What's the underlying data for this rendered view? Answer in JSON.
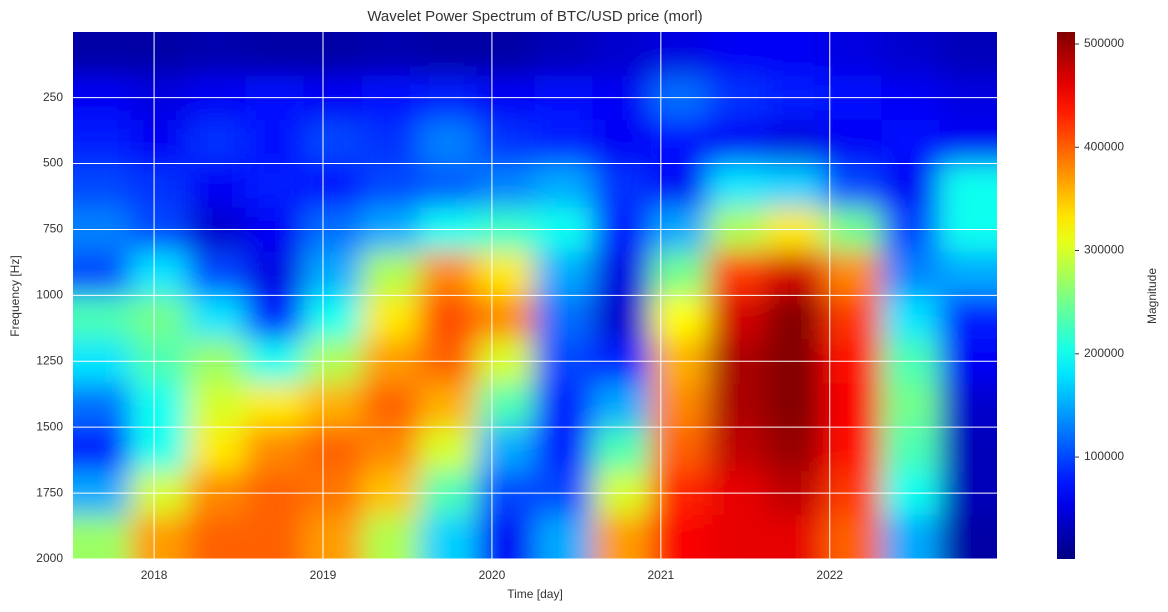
{
  "chart_data": {
    "type": "heatmap",
    "title": "Wavelet Power Spectrum of BTC/USD price (morl)",
    "xlabel": "Time [day]",
    "ylabel": "Frequency [Hz]",
    "colorbar_label": "Magnitude",
    "colormap": "jet",
    "grid": true,
    "y_reversed": true,
    "xlim": [
      2017.52,
      2022.99
    ],
    "xticks": [
      2018,
      2019,
      2020,
      2021,
      2022
    ],
    "ylim": [
      1,
      2000
    ],
    "yticks": [
      250,
      500,
      750,
      1000,
      1250,
      1500,
      1750,
      2000
    ],
    "clim": [
      1300,
      511600
    ],
    "cticks": [
      100000,
      200000,
      300000,
      400000,
      500000
    ],
    "x": [
      2017.69,
      2018.03,
      2018.37,
      2018.71,
      2019.06,
      2019.4,
      2019.74,
      2020.08,
      2020.42,
      2020.77,
      2021.11,
      2021.45,
      2021.79,
      2022.13,
      2022.48,
      2022.82
    ],
    "y": [
      83,
      250,
      417,
      583,
      750,
      917,
      1083,
      1250,
      1417,
      1583,
      1750,
      1917
    ],
    "values": [
      [
        20000,
        20000,
        25000,
        20000,
        20000,
        25000,
        20000,
        20000,
        30000,
        40000,
        50000,
        60000,
        60000,
        50000,
        40000,
        30000
      ],
      [
        60000,
        50000,
        60000,
        70000,
        60000,
        70000,
        80000,
        60000,
        70000,
        60000,
        120000,
        90000,
        80000,
        70000,
        60000,
        50000
      ],
      [
        80000,
        60000,
        90000,
        70000,
        100000,
        90000,
        130000,
        90000,
        80000,
        60000,
        70000,
        60000,
        50000,
        60000,
        70000,
        60000
      ],
      [
        100000,
        90000,
        60000,
        80000,
        70000,
        100000,
        110000,
        130000,
        150000,
        90000,
        60000,
        180000,
        170000,
        100000,
        60000,
        200000
      ],
      [
        130000,
        100000,
        40000,
        60000,
        120000,
        150000,
        200000,
        220000,
        200000,
        80000,
        150000,
        280000,
        330000,
        250000,
        100000,
        200000
      ],
      [
        100000,
        180000,
        100000,
        50000,
        150000,
        280000,
        380000,
        330000,
        150000,
        50000,
        250000,
        420000,
        470000,
        380000,
        130000,
        150000
      ],
      [
        230000,
        250000,
        180000,
        80000,
        200000,
        330000,
        410000,
        380000,
        120000,
        40000,
        320000,
        470000,
        510000,
        420000,
        180000,
        80000
      ],
      [
        180000,
        230000,
        270000,
        200000,
        280000,
        370000,
        400000,
        300000,
        100000,
        80000,
        360000,
        490000,
        510000,
        440000,
        230000,
        60000
      ],
      [
        120000,
        200000,
        300000,
        330000,
        360000,
        400000,
        360000,
        230000,
        80000,
        150000,
        380000,
        490000,
        510000,
        450000,
        250000,
        40000
      ],
      [
        70000,
        200000,
        330000,
        380000,
        400000,
        380000,
        300000,
        150000,
        80000,
        230000,
        400000,
        480000,
        500000,
        440000,
        230000,
        30000
      ],
      [
        150000,
        300000,
        380000,
        400000,
        390000,
        350000,
        230000,
        100000,
        100000,
        300000,
        430000,
        460000,
        480000,
        420000,
        200000,
        30000
      ],
      [
        270000,
        370000,
        400000,
        400000,
        370000,
        280000,
        170000,
        60000,
        150000,
        370000,
        450000,
        460000,
        460000,
        400000,
        150000,
        20000
      ]
    ]
  }
}
